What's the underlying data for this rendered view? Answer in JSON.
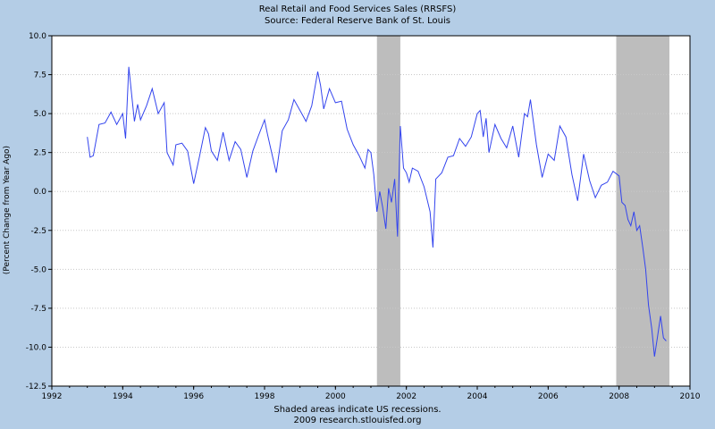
{
  "chart_data": {
    "type": "line",
    "title": "Real Retail and Food Services Sales (RRSFS)",
    "subtitle": "Source: Federal Reserve Bank of St. Louis",
    "ylabel": "(Percent Change from Year Ago)",
    "xlabel": "",
    "footer": [
      "Shaded areas indicate US recessions.",
      "2009 research.stlouisfed.org"
    ],
    "xlim": [
      1992,
      2010
    ],
    "ylim": [
      -12.5,
      10.0
    ],
    "x_ticks": [
      "1992",
      "1994",
      "1996",
      "1998",
      "2000",
      "2002",
      "2004",
      "2006",
      "2008",
      "2010"
    ],
    "y_ticks": [
      "10.0",
      "7.5",
      "5.0",
      "2.5",
      "0.0",
      "-2.5",
      "-5.0",
      "-7.5",
      "-10.0",
      "-12.5"
    ],
    "grid": true,
    "line_color": "#3344ee",
    "recession_color": "#bdbdbd",
    "recessions": [
      [
        2001.17,
        2001.83
      ],
      [
        2007.92,
        2009.42
      ]
    ],
    "series": [
      {
        "x": [
          1993.0,
          1993.08,
          1993.17,
          1993.33,
          1993.5,
          1993.67,
          1993.83,
          1994.0,
          1994.08,
          1994.17,
          1994.33,
          1994.42,
          1994.5,
          1994.67,
          1994.83,
          1995.0,
          1995.17,
          1995.25,
          1995.42,
          1995.5,
          1995.67,
          1995.83,
          1996.0,
          1996.17,
          1996.33,
          1996.42,
          1996.5,
          1996.67,
          1996.83,
          1997.0,
          1997.17,
          1997.33,
          1997.5,
          1997.67,
          1997.83,
          1998.0,
          1998.08,
          1998.17,
          1998.33,
          1998.5,
          1998.67,
          1998.83,
          1999.0,
          1999.17,
          1999.33,
          1999.5,
          1999.58,
          1999.67,
          1999.83,
          2000.0,
          2000.17,
          2000.33,
          2000.5,
          2000.67,
          2000.83,
          2000.92,
          2001.0,
          2001.08,
          2001.17,
          2001.25,
          2001.33,
          2001.42,
          2001.5,
          2001.58,
          2001.67,
          2001.75,
          2001.83,
          2001.92,
          2002.0,
          2002.08,
          2002.17,
          2002.33,
          2002.5,
          2002.67,
          2002.75,
          2002.83,
          2003.0,
          2003.17,
          2003.33,
          2003.5,
          2003.67,
          2003.83,
          2004.0,
          2004.08,
          2004.17,
          2004.25,
          2004.33,
          2004.5,
          2004.67,
          2004.83,
          2005.0,
          2005.17,
          2005.33,
          2005.42,
          2005.5,
          2005.67,
          2005.83,
          2006.0,
          2006.17,
          2006.33,
          2006.5,
          2006.67,
          2006.83,
          2007.0,
          2007.17,
          2007.33,
          2007.5,
          2007.67,
          2007.83,
          2008.0,
          2008.08,
          2008.17,
          2008.25,
          2008.33,
          2008.42,
          2008.5,
          2008.58,
          2008.67,
          2008.75,
          2008.83,
          2008.92,
          2009.0,
          2009.08,
          2009.17,
          2009.25,
          2009.33
        ],
        "values": [
          3.5,
          2.2,
          2.3,
          4.3,
          4.4,
          5.1,
          4.3,
          5.0,
          3.4,
          8.0,
          4.5,
          5.6,
          4.6,
          5.5,
          6.6,
          5.0,
          5.7,
          2.5,
          1.7,
          3.0,
          3.1,
          2.6,
          0.5,
          2.3,
          4.1,
          3.7,
          2.6,
          2.0,
          3.8,
          2.0,
          3.2,
          2.7,
          0.9,
          2.6,
          3.6,
          4.6,
          3.7,
          2.8,
          1.2,
          3.9,
          4.6,
          5.9,
          5.2,
          4.5,
          5.5,
          7.7,
          6.8,
          5.3,
          6.6,
          5.7,
          5.8,
          4.0,
          3.0,
          2.3,
          1.5,
          2.7,
          2.5,
          1.1,
          -1.3,
          0.0,
          -1.0,
          -2.4,
          0.2,
          -0.7,
          0.8,
          -2.9,
          4.2,
          1.5,
          1.2,
          0.6,
          1.5,
          1.3,
          0.3,
          -1.3,
          -3.6,
          0.8,
          1.2,
          2.2,
          2.3,
          3.4,
          2.9,
          3.5,
          5.0,
          5.2,
          3.5,
          4.7,
          2.5,
          4.3,
          3.4,
          2.8,
          4.2,
          2.2,
          5.0,
          4.8,
          5.9,
          3.0,
          0.9,
          2.4,
          2.0,
          4.2,
          3.5,
          1.1,
          -0.6,
          2.4,
          0.7,
          -0.4,
          0.4,
          0.6,
          1.3,
          1.0,
          -0.7,
          -0.9,
          -1.8,
          -2.2,
          -1.3,
          -2.5,
          -2.2,
          -3.6,
          -5.0,
          -7.3,
          -8.8,
          -10.6,
          -9.4,
          -8.0,
          -9.4,
          -9.6
        ],
        "name": ""
      }
    ]
  }
}
